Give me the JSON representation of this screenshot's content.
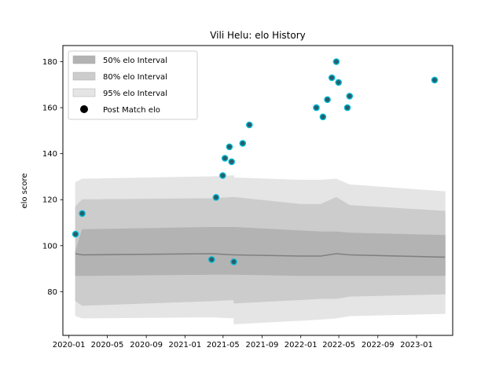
{
  "chart_data": {
    "type": "scatter",
    "title": "Vili Helu: elo History",
    "xlabel": "",
    "ylabel": "elo score",
    "xlim": [
      "2019-12-13",
      "2023-04-25"
    ],
    "ylim": [
      61,
      187
    ],
    "x_ticks": [
      "2020-01",
      "2020-05",
      "2020-09",
      "2021-01",
      "2021-05",
      "2021-09",
      "2022-01",
      "2022-05",
      "2022-09",
      "2023-01"
    ],
    "y_ticks": [
      80,
      100,
      120,
      140,
      160,
      180
    ],
    "grid": false,
    "legend_position": "top-left",
    "legend": [
      "50% elo Interval",
      "80% elo Interval",
      "95% elo Interval",
      "Post Match elo"
    ],
    "colors": {
      "band_50": "#b3b3b3",
      "band_80": "#cccccc",
      "band_95": "#e5e5e5",
      "mean_line": "#808080",
      "marker_face": "#2b5c6b",
      "marker_edge": "#00bcd4"
    },
    "post_match_elo": [
      {
        "date": "2020-01-22",
        "elo": 105
      },
      {
        "date": "2020-02-12",
        "elo": 114
      },
      {
        "date": "2021-03-26",
        "elo": 94
      },
      {
        "date": "2021-04-09",
        "elo": 121
      },
      {
        "date": "2021-04-30",
        "elo": 130.5
      },
      {
        "date": "2021-05-07",
        "elo": 138
      },
      {
        "date": "2021-05-21",
        "elo": 143
      },
      {
        "date": "2021-05-28",
        "elo": 136.5
      },
      {
        "date": "2021-06-04",
        "elo": 93
      },
      {
        "date": "2021-07-02",
        "elo": 144.5
      },
      {
        "date": "2021-07-23",
        "elo": 152.5
      },
      {
        "date": "2022-02-19",
        "elo": 160
      },
      {
        "date": "2022-03-12",
        "elo": 156
      },
      {
        "date": "2022-03-26",
        "elo": 163.5
      },
      {
        "date": "2022-04-09",
        "elo": 173
      },
      {
        "date": "2022-04-23",
        "elo": 180
      },
      {
        "date": "2022-04-30",
        "elo": 171
      },
      {
        "date": "2022-05-28",
        "elo": 160
      },
      {
        "date": "2022-06-04",
        "elo": 165
      },
      {
        "date": "2023-02-27",
        "elo": 172
      }
    ],
    "intervals": {
      "dates": [
        "2020-01-22",
        "2020-02-12",
        "2021-03-26",
        "2021-06-04",
        "2021-06-05",
        "2022-01-01",
        "2022-03-05",
        "2022-04-23",
        "2022-06-04",
        "2023-04-01"
      ],
      "mean": [
        96.5,
        96,
        96.5,
        96,
        96,
        95.5,
        95.5,
        96.5,
        96,
        95
      ],
      "lower_50": [
        87,
        87,
        87.5,
        87.5,
        87.5,
        87,
        87,
        87,
        87,
        87
      ],
      "upper_50": [
        97.5,
        107,
        108,
        108,
        108,
        106.5,
        106,
        106,
        105.5,
        104.5
      ],
      "lower_80": [
        76,
        74,
        76,
        76.5,
        75,
        76.5,
        77,
        77,
        78,
        79
      ],
      "upper_80": [
        117,
        120,
        120.5,
        121,
        121,
        118,
        118,
        121,
        117.5,
        115
      ],
      "lower_95": [
        69.5,
        68.5,
        69,
        68.5,
        66,
        67.5,
        68,
        68.5,
        69.5,
        70.5
      ],
      "upper_95": [
        127.5,
        129,
        130,
        130.5,
        129.5,
        128.5,
        128.5,
        129,
        126.5,
        123.5
      ]
    }
  }
}
